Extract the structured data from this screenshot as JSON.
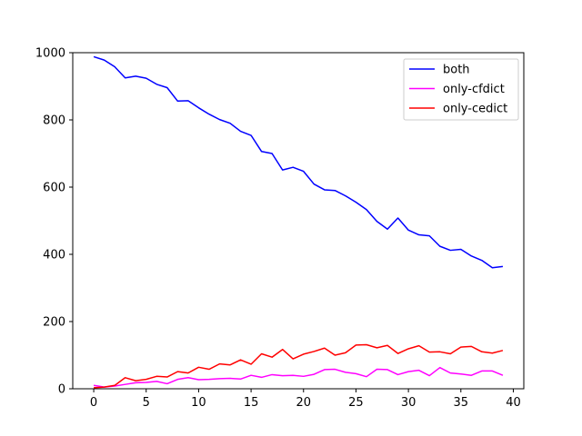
{
  "chart_data": {
    "type": "line",
    "title": "",
    "xlabel": "",
    "ylabel": "",
    "xlim": [
      -2,
      41
    ],
    "ylim": [
      0,
      1000
    ],
    "xticks": [
      0,
      5,
      10,
      15,
      20,
      25,
      30,
      35,
      40
    ],
    "yticks": [
      0,
      200,
      400,
      600,
      800,
      1000
    ],
    "grid": false,
    "legend_position": "top-right",
    "x": [
      0,
      1,
      2,
      3,
      4,
      5,
      6,
      7,
      8,
      9,
      10,
      11,
      12,
      13,
      14,
      15,
      16,
      17,
      18,
      19,
      20,
      21,
      22,
      23,
      24,
      25,
      26,
      27,
      28,
      29,
      30,
      31,
      32,
      33,
      34,
      35,
      36,
      37,
      38,
      39
    ],
    "series": [
      {
        "name": "both",
        "color": "#0000ff",
        "values": [
          988,
          978,
          958,
          925,
          930,
          924,
          906,
          896,
          856,
          857,
          836,
          817,
          801,
          790,
          766,
          754,
          706,
          700,
          651,
          659,
          647,
          609,
          592,
          590,
          574,
          555,
          533,
          498,
          475,
          508,
          472,
          458,
          455,
          424,
          412,
          415,
          395,
          382,
          360,
          364
        ]
      },
      {
        "name": "only-cfdict",
        "color": "#ff00ff",
        "values": [
          10,
          5,
          8,
          13,
          18,
          19,
          22,
          15,
          28,
          33,
          27,
          28,
          30,
          31,
          29,
          40,
          34,
          42,
          39,
          40,
          37,
          43,
          57,
          58,
          49,
          45,
          36,
          58,
          57,
          42,
          51,
          55,
          39,
          63,
          47,
          44,
          40,
          53,
          53,
          40
        ]
      },
      {
        "name": "only-cedict",
        "color": "#ff0000",
        "values": [
          3,
          5,
          10,
          33,
          24,
          28,
          37,
          35,
          51,
          47,
          64,
          58,
          74,
          71,
          86,
          73,
          104,
          94,
          117,
          89,
          103,
          111,
          121,
          100,
          107,
          130,
          131,
          122,
          129,
          105,
          119,
          128,
          109,
          110,
          104,
          124,
          126,
          110,
          106,
          114
        ]
      }
    ]
  }
}
